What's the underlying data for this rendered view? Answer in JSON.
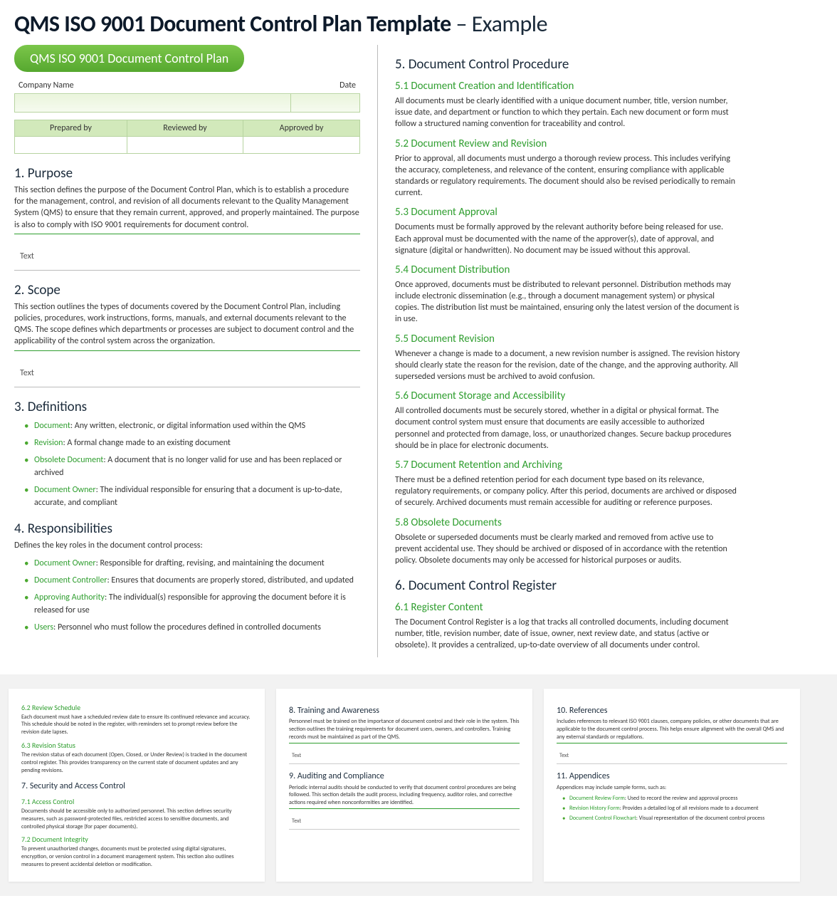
{
  "page": {
    "title_bold": "QMS ISO 9001 Document Control Plan Template",
    "title_suffix": " – Example",
    "pill": "QMS ISO 9001 Document Control Plan"
  },
  "hdr_labels": {
    "company": "Company Name",
    "date": "Date"
  },
  "approval_cols": [
    "Prepared by",
    "Reviewed by",
    "Approved by"
  ],
  "left": {
    "s1_h": "1. Purpose",
    "s1_p": "This section defines the purpose of the Document Control Plan, which is to establish a procedure for the management, control, and revision of all documents relevant to the Quality Management System (QMS) to ensure that they remain current, approved, and properly maintained. The purpose is also to comply with ISO 9001 requirements for document control.",
    "s1_ph": "Text",
    "s2_h": "2. Scope",
    "s2_p": "This section outlines the types of documents covered by the Document Control Plan, including policies, procedures, work instructions, forms, manuals, and external documents relevant to the QMS. The scope defines which departments or processes are subject to document control and the applicability of the control system across the organization.",
    "s2_ph": "Text",
    "s3_h": "3. Definitions",
    "s3_items": [
      {
        "term": "Document",
        "def": ": Any written, electronic, or digital information used within the QMS"
      },
      {
        "term": "Revision",
        "def": ": A formal change made to an existing document"
      },
      {
        "term": "Obsolete Document",
        "def": ": A document that is no longer valid for use and has been replaced or archived"
      },
      {
        "term": "Document Owner",
        "def": ": The individual responsible for ensuring that a document is up-to-date, accurate, and compliant"
      }
    ],
    "s4_h": "4. Responsibilities",
    "s4_p": "Defines the key roles in the document control process:",
    "s4_items": [
      {
        "term": "Document Owner",
        "def": ": Responsible for drafting, revising, and maintaining the document"
      },
      {
        "term": "Document Controller",
        "def": ": Ensures that documents are properly stored, distributed, and updated"
      },
      {
        "term": "Approving Authority",
        "def": ": The individual(s) responsible for approving the document before it is released for use"
      },
      {
        "term": "Users",
        "def": ": Personnel who must follow the procedures defined in controlled documents"
      }
    ]
  },
  "right": {
    "s5_h": "5. Document Control Procedure",
    "subs": [
      {
        "h": "5.1   Document Creation and Identification",
        "p": "All documents must be clearly identified with a unique document number, title, version number, issue date, and department or function to which they pertain. Each new document or form must follow a structured naming convention for traceability and control."
      },
      {
        "h": "5.2   Document Review and Revision",
        "p": "Prior to approval, all documents must undergo a thorough review process. This includes verifying the accuracy, completeness, and relevance of the content, ensuring compliance with applicable standards or regulatory requirements. The document should also be revised periodically to remain current."
      },
      {
        "h": "5.3   Document Approval",
        "p": "Documents must be formally approved by the relevant authority before being released for use. Each approval must be documented with the name of the approver(s), date of approval, and signature (digital or handwritten). No document may be issued without this approval."
      },
      {
        "h": "5.4   Document Distribution",
        "p": "Once approved, documents must be distributed to relevant personnel. Distribution methods may include electronic dissemination (e.g., through a document management system) or physical copies. The distribution list must be maintained, ensuring only the latest version of the document is in use."
      },
      {
        "h": "5.5   Document Revision",
        "p": "Whenever a change is made to a document, a new revision number is assigned. The revision history should clearly state the reason for the revision, date of the change, and the approving authority. All superseded versions must be archived to avoid confusion."
      },
      {
        "h": "5.6   Document Storage and Accessibility",
        "p": "All controlled documents must be securely stored, whether in a digital or physical format. The document control system must ensure that documents are easily accessible to authorized personnel and protected from damage, loss, or unauthorized changes. Secure backup procedures should be in place for electronic documents."
      },
      {
        "h": "5.7   Document Retention and Archiving",
        "p": "There must be a defined retention period for each document type based on its relevance, regulatory requirements, or company policy. After this period, documents are archived or disposed of securely. Archived documents must remain accessible for auditing or reference purposes."
      },
      {
        "h": "5.8   Obsolete Documents",
        "p": "Obsolete or superseded documents must be clearly marked and removed from active use to prevent accidental use. They should be archived or disposed of in accordance with the retention policy. Obsolete documents may only be accessed for historical purposes or audits."
      }
    ],
    "s6_h": "6. Document Control Register",
    "s6_1h": "6.1   Register Content",
    "s6_1p": "The Document Control Register is a log that tracks all controlled documents, including document number, title, revision number, date of issue, owner, next review date, and status (active or obsolete). It provides a centralized, up-to-date overview of all documents under control."
  },
  "thumbs": [
    {
      "subs": [
        {
          "h": "6.2  Review Schedule",
          "p": "Each document must have a scheduled review date to ensure its continued relevance and accuracy. This schedule should be noted in the register, with reminders set to prompt review before the revision date lapses."
        },
        {
          "h": "6.3  Revision Status",
          "p": "The revision status of each document (Open, Closed, or Under Review) is tracked in the document control register. This provides transparency on the current state of document updates and any pending revisions."
        }
      ],
      "sec": "7. Security and Access Control",
      "subs2": [
        {
          "h": "7.1  Access Control",
          "p": "Documents should be accessible only to authorized personnel. This section defines security measures, such as password-protected files, restricted access to sensitive documents, and controlled physical storage (for paper documents)."
        },
        {
          "h": "7.2  Document Integrity",
          "p": "To prevent unauthorized changes, documents must be protected using digital signatures, encryption, or version control in a document management system. This section also outlines measures to prevent accidental deletion or modification."
        }
      ]
    },
    {
      "sec": "8. Training and Awareness",
      "p": "Personnel must be trained on the importance of document control and their role in the system. This section outlines the training requirements for document users, owners, and controllers. Training records must be maintained as part of the QMS.",
      "ph": "Text",
      "sec2": "9. Auditing and Compliance",
      "p2": "Periodic internal audits should be conducted to verify that document control procedures are being followed. This section details the audit process, including frequency, auditor roles, and corrective actions required when nonconformities are identified.",
      "ph2": "Text"
    },
    {
      "sec": "10. References",
      "p": "Includes references to relevant ISO 9001 clauses, company policies, or other documents that are applicable to the document control process. This helps ensure alignment with the overall QMS and any external standards or regulations.",
      "ph": "Text",
      "sec2": "11. Appendices",
      "p2": "Appendices may include sample forms, such as:",
      "items": [
        {
          "term": "Document Review Form",
          "def": ": Used to record the review and approval process"
        },
        {
          "term": "Revision History Form",
          "def": ": Provides a detailed log of all revisions made to a document"
        },
        {
          "term": "Document Control Flowchart",
          "def": ": Visual representation of the document control process"
        }
      ]
    }
  ]
}
